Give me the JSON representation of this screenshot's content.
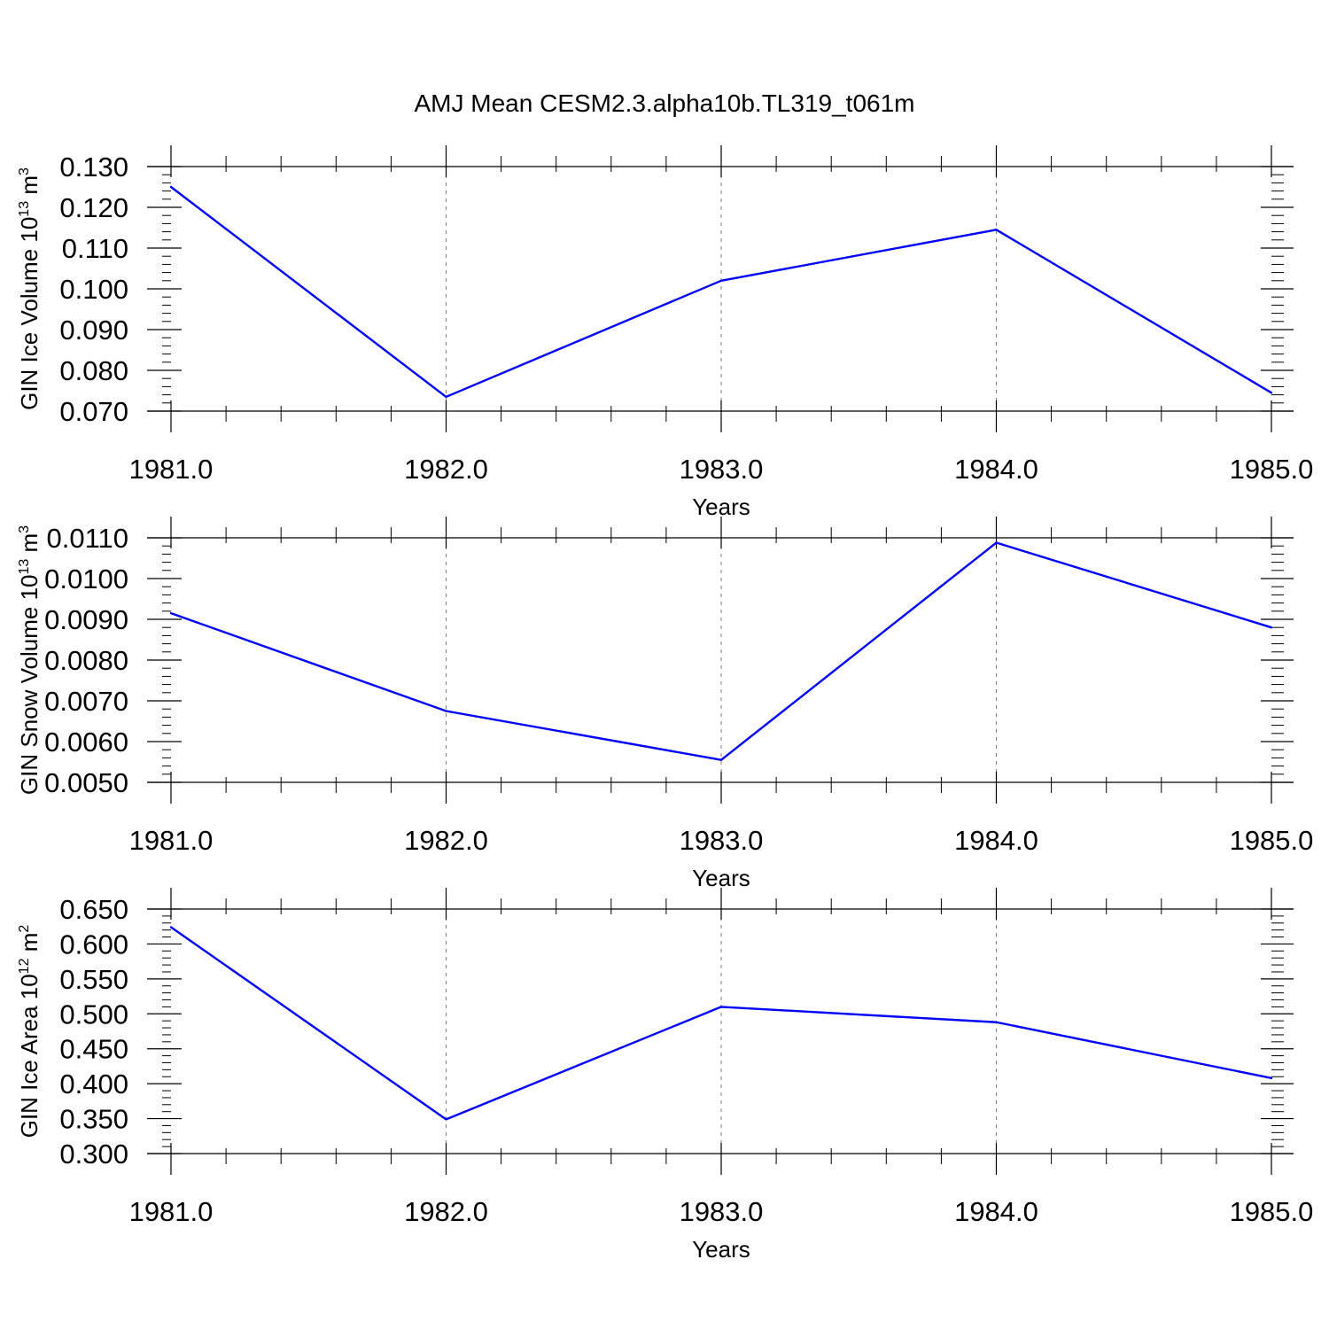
{
  "figure": {
    "title": "AMJ Mean CESM2.3.alpha10b.TL319_t061m"
  },
  "colors": {
    "series": "#0000ff",
    "axis": "#000000",
    "grid": "#808080",
    "background": "#ffffff"
  },
  "chart_data": [
    {
      "type": "line",
      "ylabel": "GIN Ice Volume 10",
      "ylabel_sup": "13",
      "ylabel_unit": " m",
      "ylabel_unit_sup": "3",
      "xlabel": "Years",
      "xlim": [
        1981,
        1985
      ],
      "ylim": [
        0.07,
        0.13
      ],
      "xticks": [
        1981,
        1982,
        1983,
        1984,
        1985
      ],
      "xtick_labels": [
        "1981.0",
        "1982.0",
        "1983.0",
        "1984.0",
        "1985.0"
      ],
      "yticks": [
        0.07,
        0.08,
        0.09,
        0.1,
        0.11,
        0.12,
        0.13
      ],
      "ytick_labels": [
        "0.070",
        "0.080",
        "0.090",
        "0.100",
        "0.110",
        "0.120",
        "0.130"
      ],
      "grid": "vertical dashed at major x ticks",
      "x": [
        1981,
        1982,
        1983,
        1984,
        1985
      ],
      "series": [
        {
          "values": [
            0.125,
            0.0735,
            0.102,
            0.1145,
            0.0745
          ]
        }
      ]
    },
    {
      "type": "line",
      "ylabel": "GIN Snow Volume 10",
      "ylabel_sup": "13",
      "ylabel_unit": " m",
      "ylabel_unit_sup": "3",
      "xlabel": "Years",
      "xlim": [
        1981,
        1985
      ],
      "ylim": [
        0.005,
        0.011
      ],
      "xticks": [
        1981,
        1982,
        1983,
        1984,
        1985
      ],
      "xtick_labels": [
        "1981.0",
        "1982.0",
        "1983.0",
        "1984.0",
        "1985.0"
      ],
      "yticks": [
        0.005,
        0.006,
        0.007,
        0.008,
        0.009,
        0.01,
        0.011
      ],
      "ytick_labels": [
        "0.0050",
        "0.0060",
        "0.0070",
        "0.0080",
        "0.0090",
        "0.0100",
        "0.0110"
      ],
      "grid": "vertical dashed at major x ticks",
      "x": [
        1981,
        1982,
        1983,
        1984,
        1985
      ],
      "series": [
        {
          "values": [
            0.00915,
            0.00675,
            0.00555,
            0.01088,
            0.0088
          ]
        }
      ]
    },
    {
      "type": "line",
      "ylabel": "GIN Ice Area 10",
      "ylabel_sup": "12",
      "ylabel_unit": " m",
      "ylabel_unit_sup": "2",
      "xlabel": "Years",
      "xlim": [
        1981,
        1985
      ],
      "ylim": [
        0.3,
        0.65
      ],
      "xticks": [
        1981,
        1982,
        1983,
        1984,
        1985
      ],
      "xtick_labels": [
        "1981.0",
        "1982.0",
        "1983.0",
        "1984.0",
        "1985.0"
      ],
      "yticks": [
        0.3,
        0.35,
        0.4,
        0.45,
        0.5,
        0.55,
        0.6,
        0.65
      ],
      "ytick_labels": [
        "0.300",
        "0.350",
        "0.400",
        "0.450",
        "0.500",
        "0.550",
        "0.600",
        "0.650"
      ],
      "grid": "vertical dashed at major x ticks",
      "x": [
        1981,
        1982,
        1983,
        1984,
        1985
      ],
      "series": [
        {
          "values": [
            0.624,
            0.349,
            0.51,
            0.488,
            0.408
          ]
        }
      ]
    }
  ]
}
